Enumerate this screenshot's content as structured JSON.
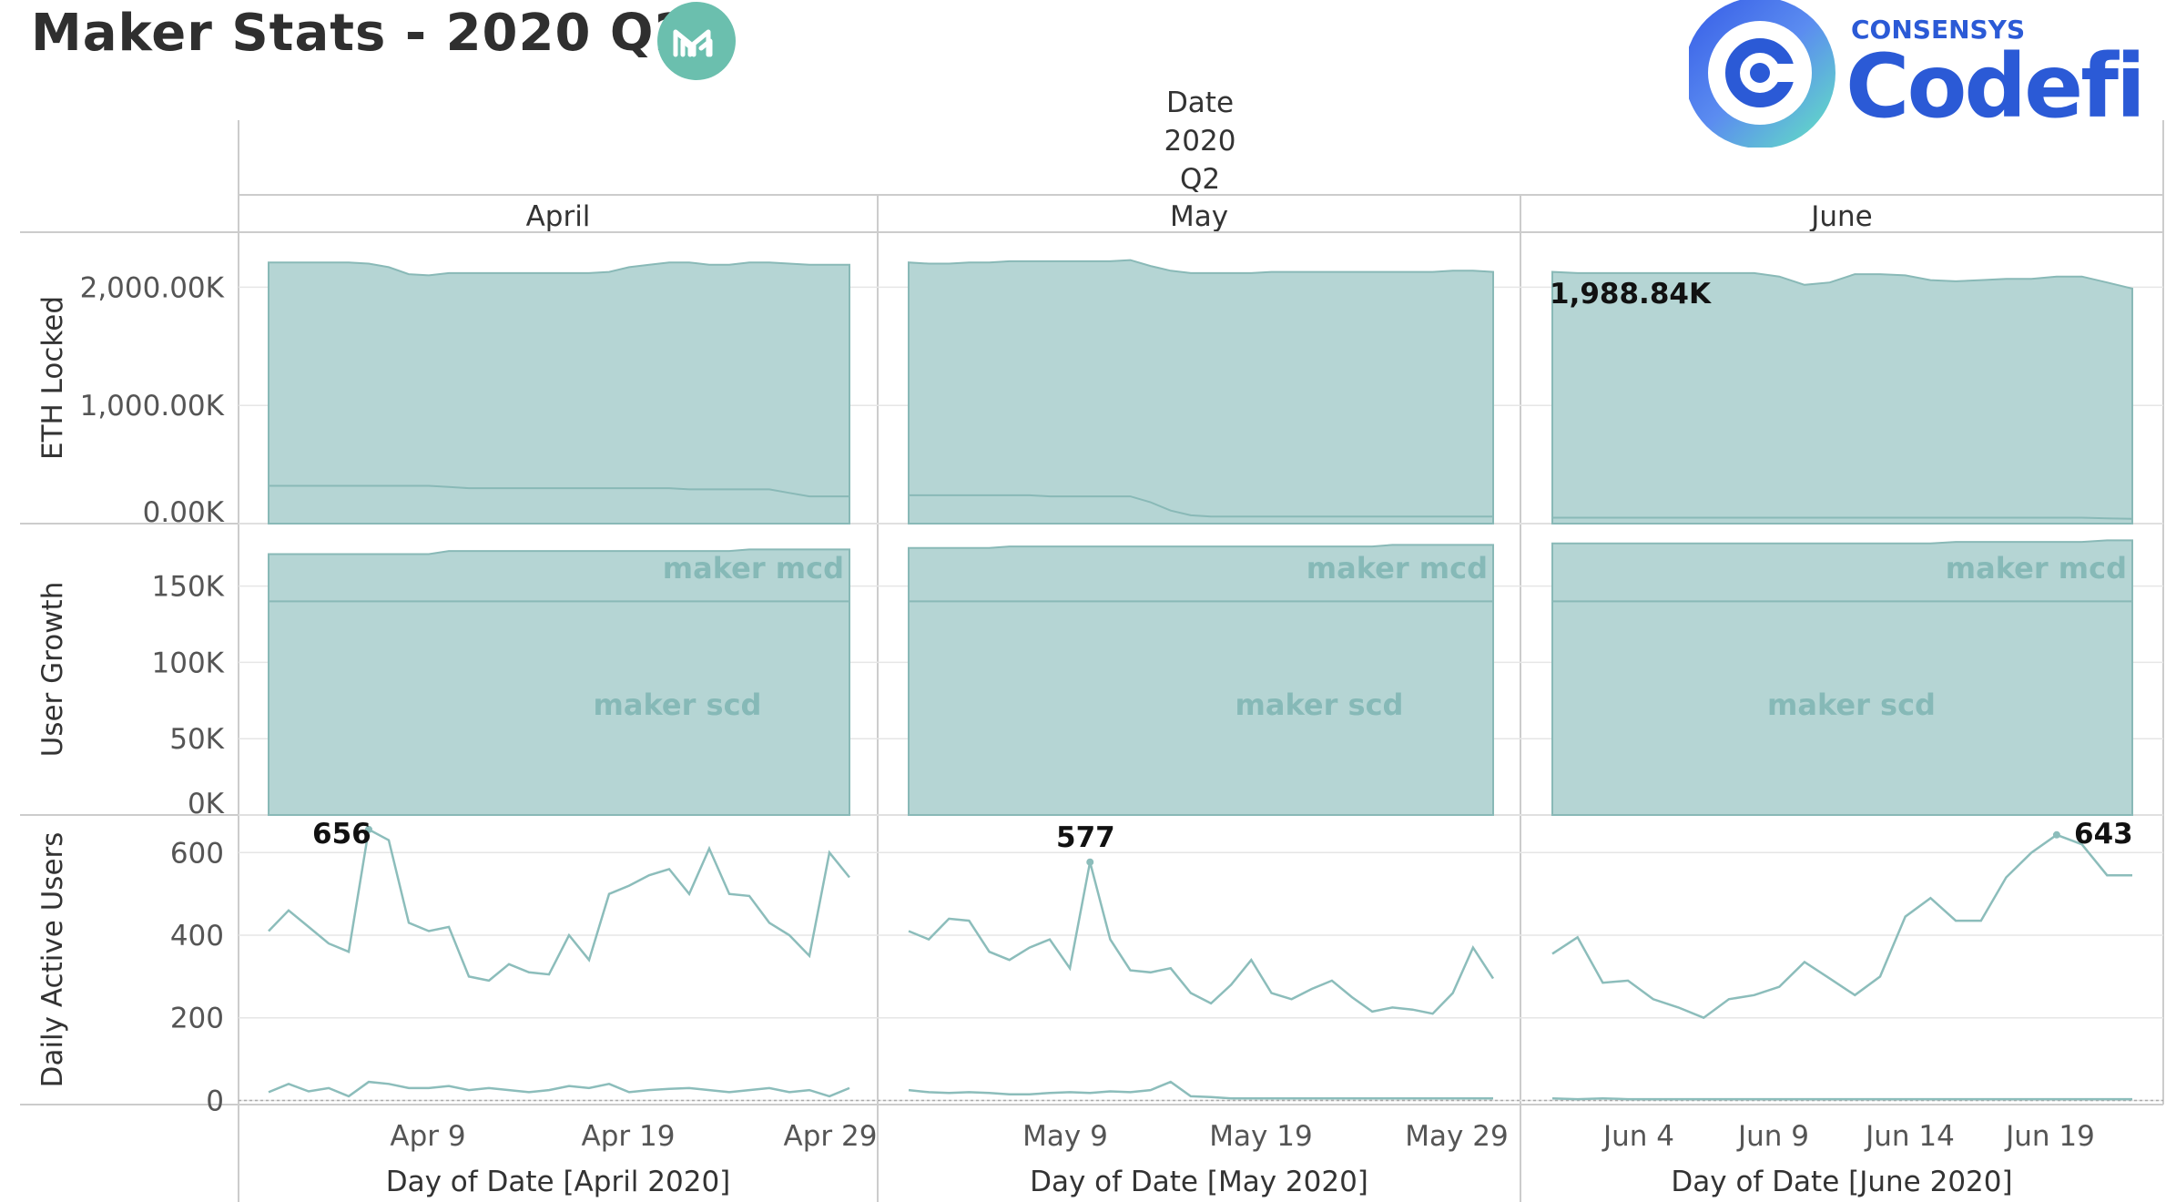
{
  "title": "Maker Stats - 2020 Q2",
  "logos": {
    "maker_icon": "maker-m-icon",
    "codefi_brand": "CONSENSYS",
    "codefi_name": "Codefi"
  },
  "colors": {
    "series": "#8cbdbb",
    "area_fill": "#b5d5d4",
    "area_stroke": "#89b9b7",
    "grid": "#e6e6e6",
    "divider": "#cccccc",
    "maker_green": "#6bbfae",
    "codefi_blue": "#2b5ad6"
  },
  "header": {
    "date_label": "Date",
    "year": "2020",
    "quarter": "Q2",
    "months": [
      "April",
      "May",
      "June"
    ]
  },
  "x_axis": {
    "titles": [
      "Day of Date [April 2020]",
      "Day of Date [May 2020]",
      "Day of Date [June 2020]"
    ],
    "ticks": [
      [
        "Apr 9",
        "Apr 19",
        "Apr 29"
      ],
      [
        "May 9",
        "May 19",
        "May 29"
      ],
      [
        "Jun 4",
        "Jun 9",
        "Jun 14",
        "Jun 19"
      ]
    ]
  },
  "rows": {
    "eth": {
      "title": "ETH Locked",
      "tick_labels": [
        "2,000.00K",
        "1,000.00K",
        "0.00K"
      ],
      "tick_values": [
        2000,
        1000,
        0
      ],
      "ylim": [
        0,
        2350
      ]
    },
    "users": {
      "title": "User Growth",
      "tick_labels": [
        "150K",
        "100K",
        "50K",
        "0K"
      ],
      "tick_values": [
        150,
        100,
        50,
        0
      ],
      "ylim": [
        0,
        185
      ],
      "labels": [
        "maker mcd",
        "maker scd"
      ]
    },
    "dau": {
      "title": "Daily Active Users",
      "tick_labels": [
        "600",
        "400",
        "200",
        "0"
      ],
      "tick_values": [
        600,
        400,
        200,
        0
      ],
      "ylim": [
        -10,
        680
      ]
    }
  },
  "annotations": {
    "eth_june": "1,988.84K",
    "dau_april_max": "656",
    "dau_may_max": "577",
    "dau_june_max": "643"
  },
  "chart_data": {
    "type": "area",
    "title": "Maker Stats - 2020 Q2",
    "panels": [
      {
        "month": "April",
        "x_start": "Apr 1",
        "eth_locked_total_k": [
          2210,
          2210,
          2210,
          2210,
          2210,
          2200,
          2170,
          2110,
          2100,
          2120,
          2120,
          2120,
          2120,
          2120,
          2120,
          2120,
          2120,
          2130,
          2170,
          2190,
          2210,
          2210,
          2190,
          2190,
          2210,
          2210,
          2200,
          2190,
          2190,
          2190
        ],
        "eth_locked_scd_k": [
          320,
          320,
          320,
          320,
          320,
          320,
          320,
          320,
          320,
          310,
          300,
          300,
          300,
          300,
          300,
          300,
          300,
          300,
          300,
          300,
          300,
          290,
          290,
          290,
          290,
          290,
          260,
          230,
          230,
          230
        ],
        "users_mcd_k": [
          171,
          171,
          171,
          171,
          171,
          171,
          171,
          171,
          171,
          173,
          173,
          173,
          173,
          173,
          173,
          173,
          173,
          173,
          173,
          173,
          173,
          173,
          173,
          173,
          174,
          174,
          174,
          174,
          174,
          174
        ],
        "users_scd_k": [
          140,
          140,
          140,
          140,
          140,
          140,
          140,
          140,
          140,
          140,
          140,
          140,
          140,
          140,
          140,
          140,
          140,
          140,
          140,
          140,
          140,
          140,
          140,
          140,
          140,
          140,
          140,
          140,
          140,
          140
        ],
        "dau_total": [
          410,
          460,
          420,
          380,
          360,
          656,
          630,
          430,
          410,
          420,
          300,
          290,
          330,
          310,
          305,
          400,
          340,
          500,
          520,
          545,
          560,
          500,
          610,
          500,
          495,
          430,
          400,
          350,
          600,
          540
        ],
        "dau_scd": [
          20,
          40,
          22,
          30,
          10,
          45,
          40,
          30,
          30,
          35,
          25,
          30,
          25,
          20,
          25,
          35,
          30,
          40,
          20,
          25,
          28,
          30,
          25,
          20,
          25,
          30,
          20,
          25,
          10,
          30
        ]
      },
      {
        "month": "May",
        "x_start": "May 1",
        "eth_locked_total_k": [
          2210,
          2200,
          2200,
          2210,
          2210,
          2220,
          2220,
          2220,
          2220,
          2220,
          2220,
          2230,
          2180,
          2140,
          2120,
          2120,
          2120,
          2120,
          2130,
          2130,
          2130,
          2130,
          2130,
          2130,
          2130,
          2130,
          2130,
          2140,
          2140,
          2130
        ],
        "eth_locked_scd_k": [
          240,
          240,
          240,
          240,
          240,
          240,
          240,
          230,
          230,
          230,
          230,
          230,
          180,
          110,
          70,
          60,
          60,
          60,
          60,
          60,
          60,
          60,
          60,
          60,
          60,
          60,
          60,
          60,
          60,
          60
        ],
        "users_mcd_k": [
          175,
          175,
          175,
          175,
          175,
          176,
          176,
          176,
          176,
          176,
          176,
          176,
          176,
          176,
          176,
          176,
          176,
          176,
          176,
          176,
          176,
          176,
          176,
          176,
          177,
          177,
          177,
          177,
          177,
          177
        ],
        "users_scd_k": [
          140,
          140,
          140,
          140,
          140,
          140,
          140,
          140,
          140,
          140,
          140,
          140,
          140,
          140,
          140,
          140,
          140,
          140,
          140,
          140,
          140,
          140,
          140,
          140,
          140,
          140,
          140,
          140,
          140,
          140
        ],
        "dau_total": [
          410,
          390,
          440,
          435,
          360,
          340,
          370,
          390,
          320,
          577,
          390,
          315,
          310,
          320,
          260,
          235,
          280,
          340,
          260,
          245,
          270,
          290,
          250,
          215,
          225,
          220,
          210,
          260,
          370,
          295
        ],
        "dau_scd": [
          25,
          20,
          18,
          20,
          18,
          15,
          15,
          18,
          20,
          18,
          22,
          20,
          25,
          45,
          10,
          8,
          5,
          5,
          5,
          5,
          5,
          5,
          5,
          5,
          5,
          5,
          5,
          5,
          5,
          5
        ]
      },
      {
        "month": "June",
        "x_start": "Jun 1",
        "eth_locked_total_k": [
          2130,
          2120,
          2120,
          2120,
          2120,
          2120,
          2120,
          2120,
          2120,
          2090,
          2020,
          2040,
          2110,
          2110,
          2100,
          2060,
          2050,
          2060,
          2070,
          2070,
          2090,
          2090,
          2040,
          1988.84
        ],
        "eth_locked_scd_k": [
          50,
          50,
          50,
          50,
          50,
          50,
          50,
          50,
          50,
          50,
          50,
          50,
          50,
          50,
          50,
          50,
          50,
          50,
          50,
          50,
          50,
          50,
          45,
          40
        ],
        "users_mcd_k": [
          178,
          178,
          178,
          178,
          178,
          178,
          178,
          178,
          178,
          178,
          178,
          178,
          178,
          178,
          178,
          178,
          179,
          179,
          179,
          179,
          179,
          179,
          180,
          180
        ],
        "users_scd_k": [
          140,
          140,
          140,
          140,
          140,
          140,
          140,
          140,
          140,
          140,
          140,
          140,
          140,
          140,
          140,
          140,
          140,
          140,
          140,
          140,
          140,
          140,
          140,
          140
        ],
        "dau_total": [
          355,
          395,
          285,
          290,
          245,
          225,
          200,
          245,
          255,
          275,
          335,
          295,
          255,
          300,
          445,
          490,
          435,
          435,
          540,
          600,
          643,
          620,
          545,
          545
        ],
        "dau_scd": [
          5,
          3,
          5,
          3,
          3,
          3,
          3,
          3,
          3,
          3,
          3,
          3,
          3,
          3,
          3,
          3,
          3,
          3,
          3,
          3,
          3,
          3,
          3,
          3
        ]
      }
    ],
    "series": [
      {
        "name": "maker mcd",
        "metric": "users"
      },
      {
        "name": "maker scd",
        "metric": "users"
      }
    ],
    "ylabel": [
      "ETH Locked",
      "User Growth",
      "Daily Active Users"
    ],
    "xlabel": [
      "Day of Date [April 2020]",
      "Day of Date [May 2020]",
      "Day of Date [June 2020]"
    ],
    "grid": true
  }
}
